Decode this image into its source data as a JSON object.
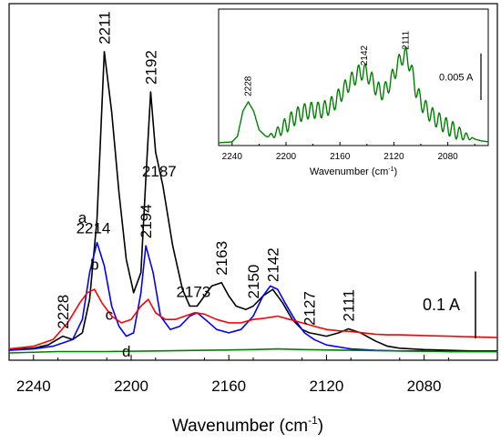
{
  "chart_data": [
    {
      "type": "line",
      "xlabel_main": "Wavenumber (cm",
      "xlabel_sup": "-1",
      "xlabel_tail": ")",
      "xlim": [
        2250,
        2050
      ],
      "ylim": [
        0,
        0.5
      ],
      "x_ticks": [
        2240,
        2200,
        2160,
        2120,
        2080
      ],
      "x_tick_labels": [
        "2240",
        "2200",
        "2160",
        "2120",
        "2080"
      ],
      "scale_bar_label": "0.1 A",
      "scale_bar_value": 0.1,
      "series": [
        {
          "name": "a",
          "color": "#000000",
          "x": [
            2250,
            2240,
            2234,
            2228,
            2224,
            2220,
            2217,
            2214,
            2211,
            2208,
            2205,
            2202,
            2199,
            2196,
            2194,
            2192,
            2190,
            2187,
            2183,
            2179,
            2176,
            2173,
            2170,
            2167,
            2163,
            2160,
            2157,
            2153,
            2150,
            2146,
            2142,
            2138,
            2134,
            2130,
            2127,
            2124,
            2120,
            2115,
            2111,
            2106,
            2100,
            2095,
            2090,
            2080,
            2070,
            2060,
            2050
          ],
          "y": [
            0.005,
            0.007,
            0.012,
            0.025,
            0.02,
            0.03,
            0.08,
            0.2,
            0.45,
            0.36,
            0.24,
            0.14,
            0.09,
            0.12,
            0.26,
            0.39,
            0.3,
            0.25,
            0.16,
            0.095,
            0.07,
            0.07,
            0.085,
            0.1,
            0.105,
            0.085,
            0.07,
            0.065,
            0.07,
            0.085,
            0.095,
            0.075,
            0.05,
            0.035,
            0.03,
            0.028,
            0.025,
            0.03,
            0.036,
            0.03,
            0.018,
            0.01,
            0.007,
            0.005,
            0.004,
            0.003,
            0.003
          ]
        },
        {
          "name": "b",
          "color": "#0000ff",
          "x": [
            2250,
            2240,
            2232,
            2228,
            2224,
            2220,
            2217,
            2214,
            2211,
            2208,
            2205,
            2202,
            2199,
            2196,
            2194,
            2191,
            2188,
            2184,
            2180,
            2176,
            2173,
            2169,
            2165,
            2160,
            2155,
            2150,
            2146,
            2143,
            2140,
            2137,
            2133,
            2129,
            2125,
            2120,
            2110,
            2100,
            2090,
            2080,
            2070,
            2060,
            2050
          ],
          "y": [
            0.004,
            0.006,
            0.01,
            0.015,
            0.02,
            0.05,
            0.12,
            0.165,
            0.13,
            0.07,
            0.04,
            0.025,
            0.03,
            0.09,
            0.16,
            0.12,
            0.055,
            0.035,
            0.04,
            0.055,
            0.06,
            0.048,
            0.035,
            0.03,
            0.035,
            0.055,
            0.085,
            0.1,
            0.095,
            0.075,
            0.05,
            0.03,
            0.02,
            0.012,
            0.006,
            0.004,
            0.003,
            0.003,
            0.002,
            0.002,
            0.002
          ]
        },
        {
          "name": "c",
          "color": "#ff0000",
          "x": [
            2250,
            2240,
            2232,
            2226,
            2221,
            2218,
            2215,
            2212,
            2208,
            2204,
            2200,
            2196,
            2193,
            2190,
            2186,
            2182,
            2178,
            2174,
            2170,
            2165,
            2160,
            2155,
            2150,
            2145,
            2140,
            2135,
            2130,
            2125,
            2120,
            2115,
            2110,
            2105,
            2100,
            2095,
            2090,
            2080,
            2070,
            2060,
            2050
          ],
          "y": [
            0.006,
            0.01,
            0.02,
            0.045,
            0.075,
            0.09,
            0.095,
            0.075,
            0.055,
            0.045,
            0.05,
            0.07,
            0.08,
            0.06,
            0.05,
            0.05,
            0.055,
            0.06,
            0.058,
            0.05,
            0.045,
            0.045,
            0.05,
            0.052,
            0.055,
            0.05,
            0.045,
            0.04,
            0.035,
            0.033,
            0.032,
            0.03,
            0.028,
            0.027,
            0.027,
            0.026,
            0.025,
            0.024,
            0.023
          ]
        },
        {
          "name": "d",
          "color": "#008000",
          "x": [
            2250,
            2230,
            2210,
            2190,
            2170,
            2150,
            2140,
            2130,
            2110,
            2090,
            2070,
            2050
          ],
          "y": [
            0.0,
            0.002,
            0.002,
            0.003,
            0.004,
            0.005,
            0.006,
            0.005,
            0.004,
            0.003,
            0.002,
            0.002
          ]
        }
      ],
      "annotations": [
        {
          "text": "2211",
          "x": 2211,
          "y": 0.45,
          "rotate": true
        },
        {
          "text": "2192",
          "x": 2192,
          "y": 0.39,
          "rotate": true
        },
        {
          "text": "2187",
          "x": 2187,
          "y": 0.25,
          "rotate": false
        },
        {
          "text": "2194",
          "x": 2194,
          "y": 0.16,
          "rotate": true
        },
        {
          "text": "2214",
          "x": 2214,
          "y": 0.165,
          "rotate": false
        },
        {
          "text": "2228",
          "x": 2228,
          "y": 0.025,
          "rotate": true
        },
        {
          "text": "2163",
          "x": 2163,
          "y": 0.105,
          "rotate": true
        },
        {
          "text": "2150",
          "x": 2150,
          "y": 0.07,
          "rotate": true
        },
        {
          "text": "2142",
          "x": 2142,
          "y": 0.095,
          "rotate": true
        },
        {
          "text": "2173",
          "x": 2173,
          "y": 0.07,
          "rotate": false
        },
        {
          "text": "2127",
          "x": 2127,
          "y": 0.03,
          "rotate": true
        },
        {
          "text": "2111",
          "x": 2111,
          "y": 0.036,
          "rotate": true
        },
        {
          "text": "a",
          "x": 2217,
          "y": 0.2,
          "rotate": false
        },
        {
          "text": "b",
          "x": 2212,
          "y": 0.13,
          "rotate": false
        },
        {
          "text": "c",
          "x": 2206,
          "y": 0.055,
          "rotate": false
        },
        {
          "text": "d",
          "x": 2199,
          "y": 0.0,
          "rotate": false
        }
      ]
    },
    {
      "type": "line",
      "xlabel_main": "Wavenumber (cm",
      "xlabel_sup": "-1",
      "xlabel_tail": ")",
      "xlim": [
        2250,
        2050
      ],
      "ylim": [
        0,
        0.0125
      ],
      "x_ticks": [
        2240,
        2200,
        2160,
        2120,
        2080
      ],
      "x_tick_labels": [
        "2240",
        "2200",
        "2160",
        "2120",
        "2080"
      ],
      "scale_bar_label": "0.005 A",
      "scale_bar_value": 0.005,
      "series": [
        {
          "name": "",
          "color": "#008000",
          "envelope_x": [
            2250,
            2240,
            2236,
            2232,
            2228,
            2224,
            2220,
            2215,
            2210,
            2205,
            2200,
            2195,
            2190,
            2185,
            2180,
            2175,
            2170,
            2165,
            2160,
            2155,
            2150,
            2146,
            2142,
            2138,
            2134,
            2130,
            2126,
            2122,
            2118,
            2114,
            2111,
            2108,
            2104,
            2100,
            2095,
            2090,
            2085,
            2080,
            2075,
            2070,
            2065,
            2060,
            2055,
            2050
          ],
          "envelope_y": [
            0.0001,
            0.0002,
            0.0008,
            0.0035,
            0.0045,
            0.0035,
            0.0015,
            0.0008,
            0.0009,
            0.0014,
            0.002,
            0.0027,
            0.0032,
            0.0035,
            0.0036,
            0.0036,
            0.0038,
            0.0043,
            0.0052,
            0.0062,
            0.007,
            0.0076,
            0.0078,
            0.0072,
            0.0062,
            0.0055,
            0.0058,
            0.0068,
            0.0082,
            0.0093,
            0.0095,
            0.0085,
            0.006,
            0.0045,
            0.0035,
            0.0028,
            0.0023,
            0.0018,
            0.0014,
            0.001,
            0.0007,
            0.0005,
            0.0003,
            0.0002
          ],
          "fringe_amplitude": 0.0009,
          "fringe_period": 5,
          "fringe_range": [
            2215,
            2060
          ]
        }
      ],
      "annotations": [
        {
          "text": "2228",
          "x": 2228,
          "y": 0.0045,
          "rotate": true
        },
        {
          "text": "2142",
          "x": 2142,
          "y": 0.0078,
          "rotate": true
        },
        {
          "text": "2111",
          "x": 2111,
          "y": 0.0095,
          "rotate": true
        }
      ]
    }
  ]
}
